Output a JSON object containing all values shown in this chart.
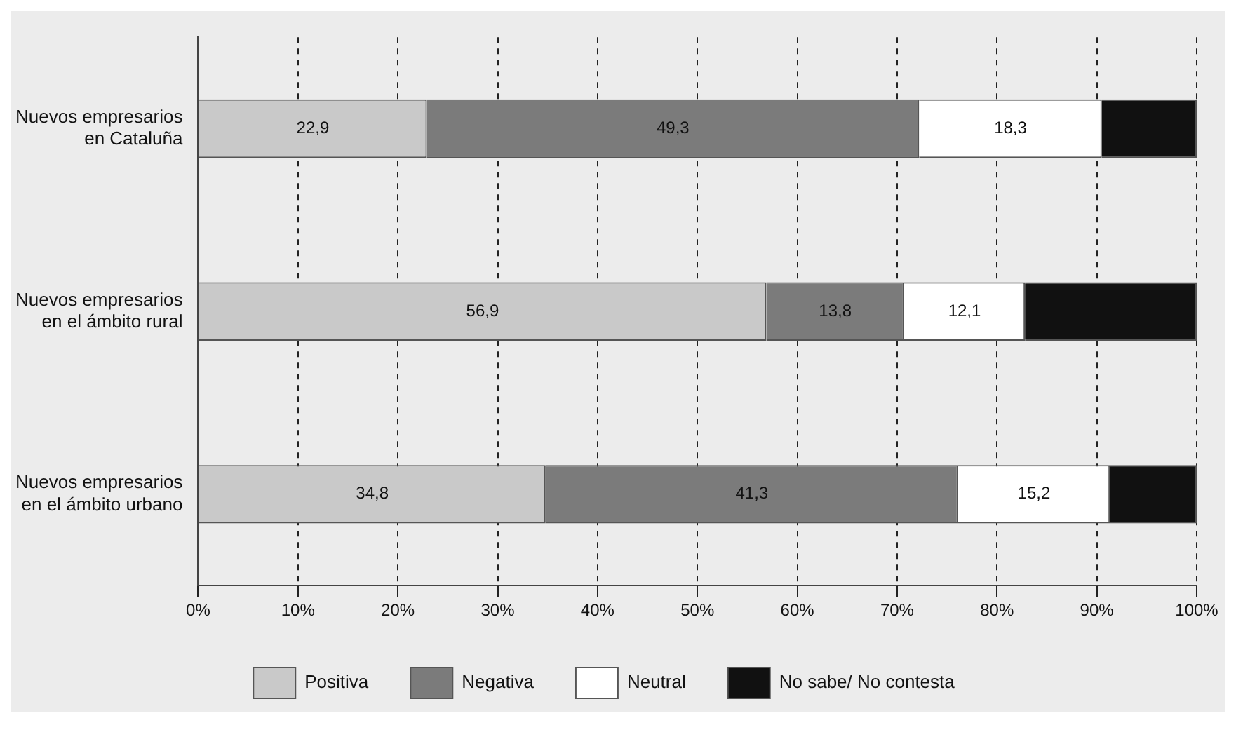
{
  "chart_data": {
    "type": "bar",
    "orientation": "horizontal",
    "stacked": true,
    "categories": [
      "Nuevos empresarios en Cataluña",
      "Nuevos empresarios en el ámbito rural",
      "Nuevos empresarios en el ámbito urbano"
    ],
    "series": [
      {
        "name": "Positiva",
        "color": "#c9c9c9",
        "values": [
          22.9,
          56.9,
          34.8
        ],
        "value_labels": [
          "22,9",
          "56,9",
          "34,8"
        ]
      },
      {
        "name": "Negativa",
        "color": "#7b7b7b",
        "values": [
          49.3,
          13.8,
          41.3
        ],
        "value_labels": [
          "49,3",
          "13,8",
          "41,3"
        ]
      },
      {
        "name": "Neutral",
        "color": "#ffffff",
        "values": [
          18.3,
          12.1,
          15.2
        ],
        "value_labels": [
          "18,3",
          "12,1",
          "15,2"
        ]
      },
      {
        "name": "No sabe/ No contesta",
        "color": "#111111",
        "values": [
          9.5,
          17.2,
          8.7
        ]
      }
    ],
    "xlim": [
      0,
      100
    ],
    "xticks": [
      {
        "value": 0,
        "label": "0%"
      },
      {
        "value": 10,
        "label": "10%"
      },
      {
        "value": 20,
        "label": "20%"
      },
      {
        "value": 30,
        "label": "30%"
      },
      {
        "value": 40,
        "label": "40%"
      },
      {
        "value": 50,
        "label": "50%"
      },
      {
        "value": 60,
        "label": "60%"
      },
      {
        "value": 70,
        "label": "70%"
      },
      {
        "value": 80,
        "label": "80%"
      },
      {
        "value": 90,
        "label": "90%"
      },
      {
        "value": 100,
        "label": "100%"
      }
    ],
    "grid": "x",
    "line_style": "dashed",
    "legend": "bottom"
  }
}
